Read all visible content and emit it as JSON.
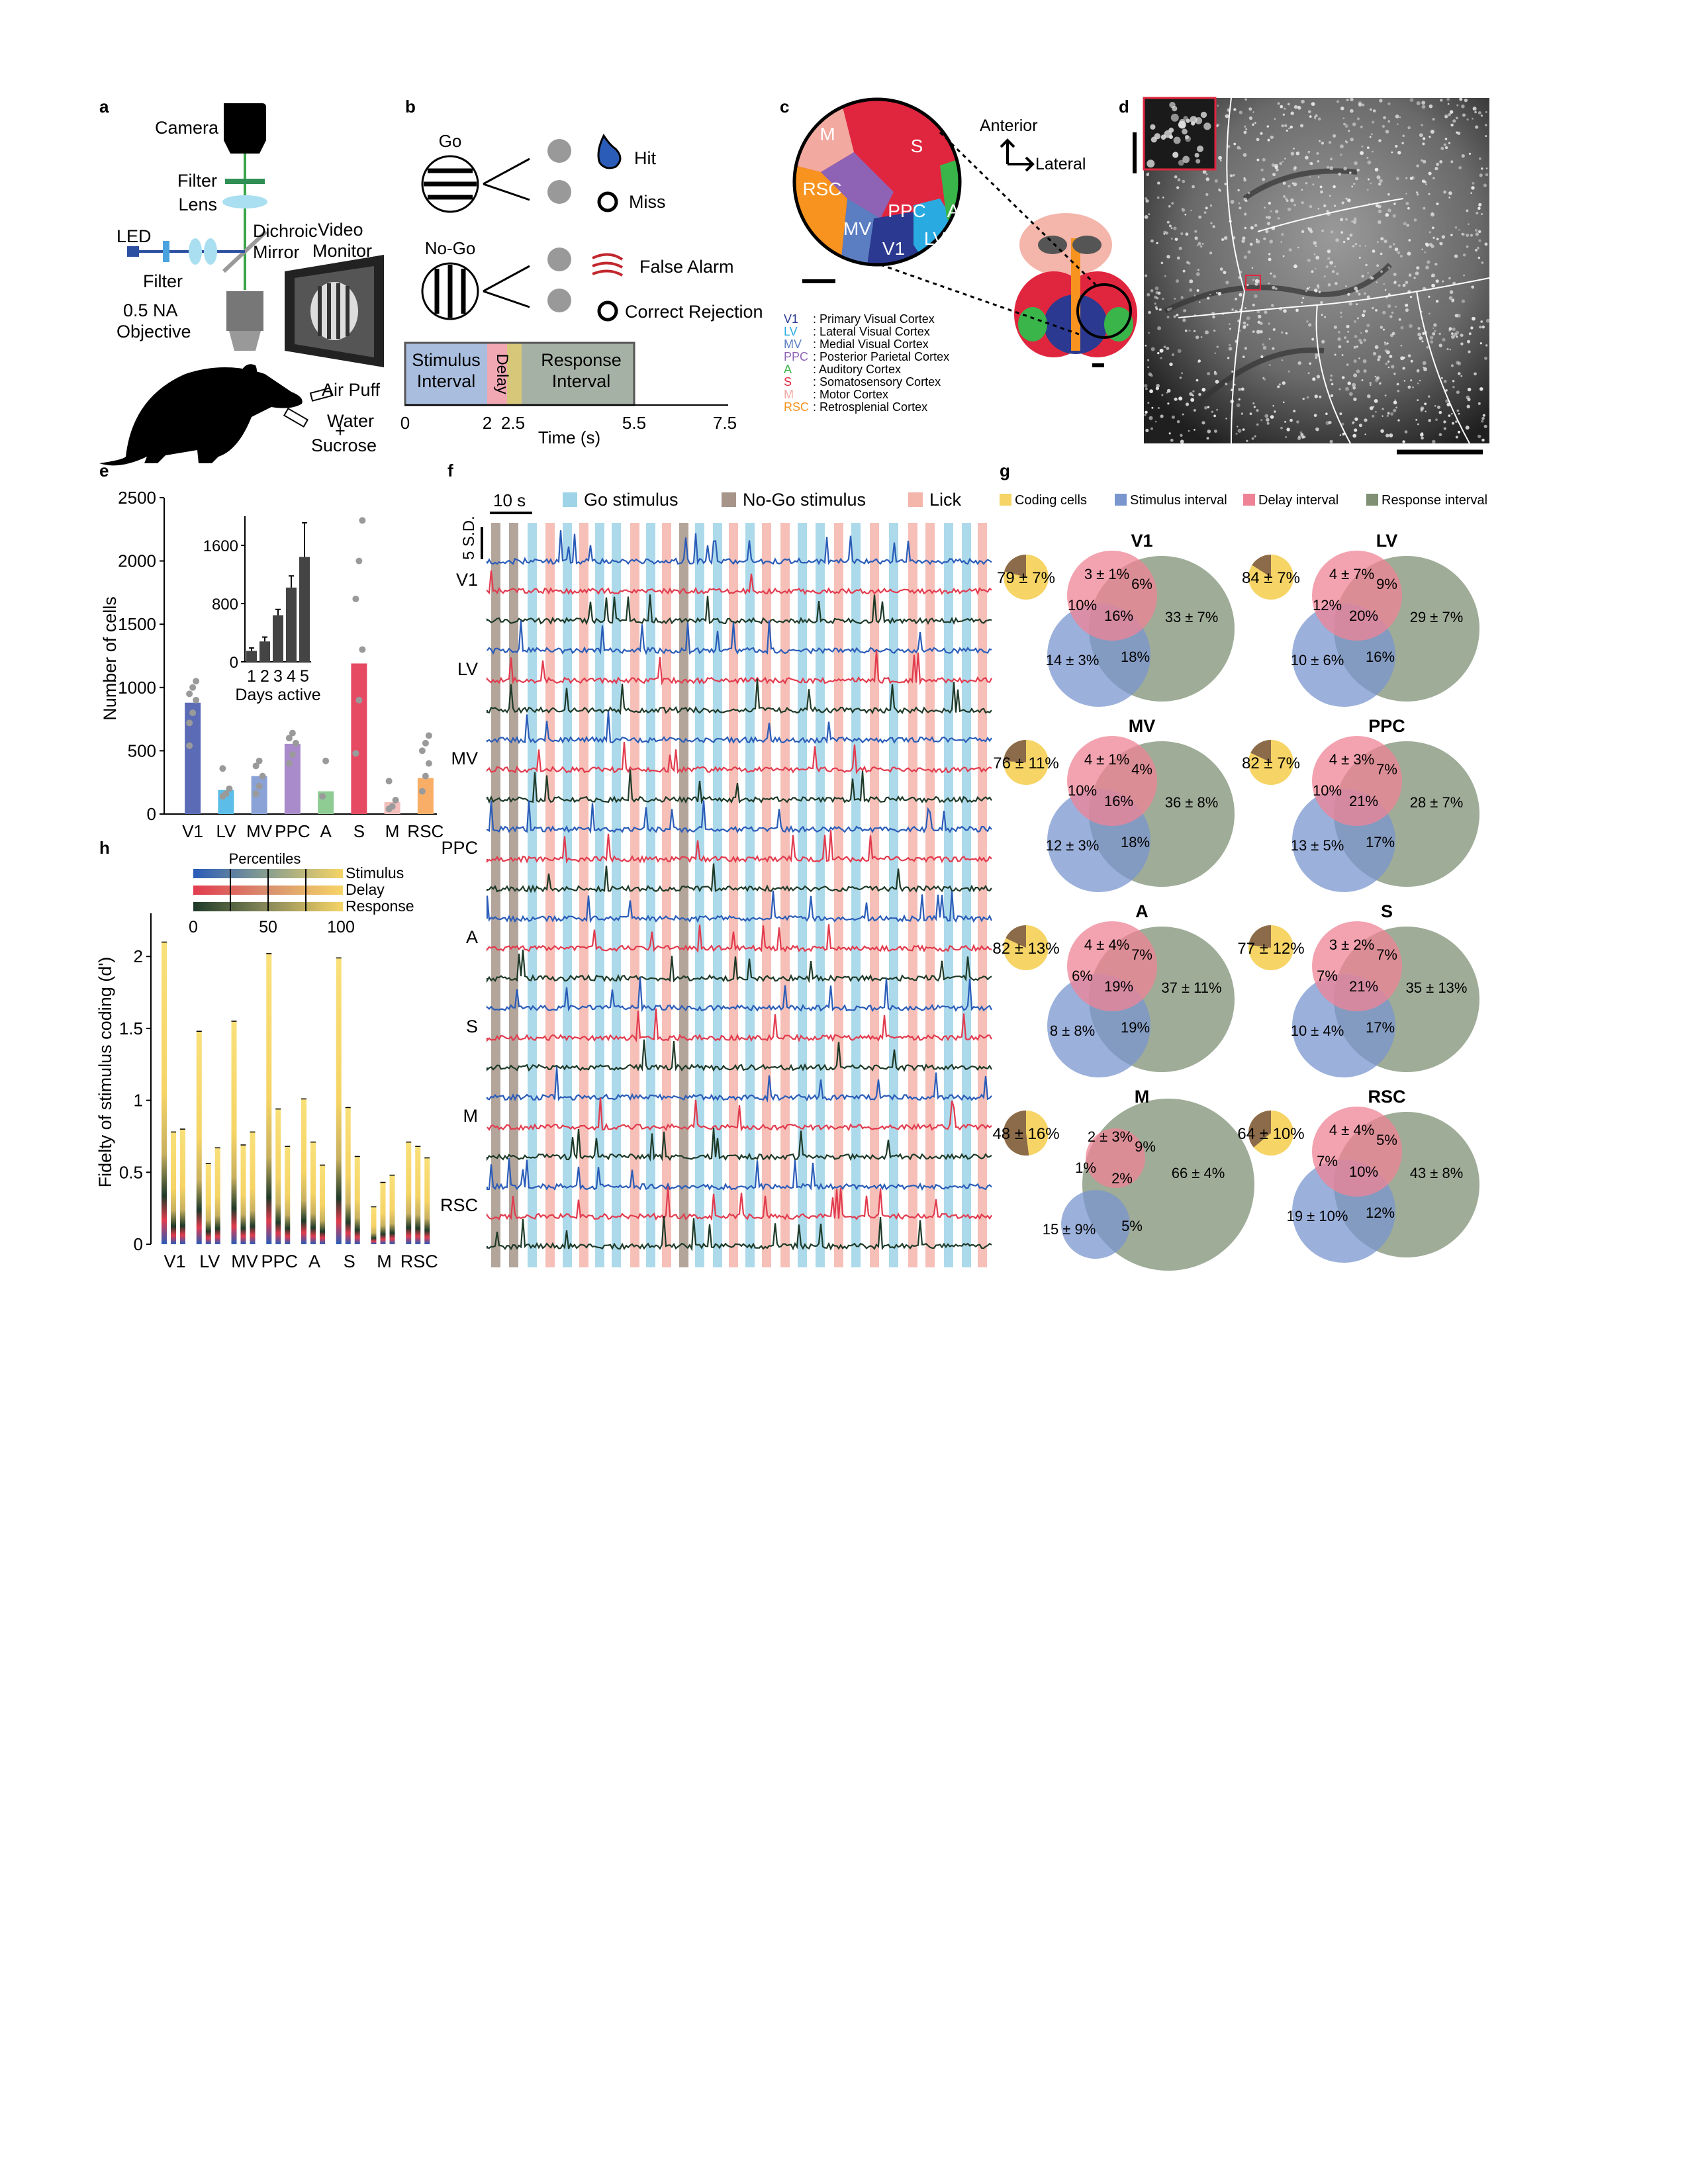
{
  "panels": {
    "a": {
      "letter": "a",
      "labels": [
        "Camera",
        "Filter",
        "Lens",
        "Dichroic",
        "Mirror",
        "LED",
        "Filter",
        "0.5 NA",
        "Objective",
        "Video",
        "Monitor",
        "Air Puff",
        "Water",
        "+",
        "Sucrose"
      ]
    },
    "b": {
      "letter": "b",
      "go_label": "Go",
      "nogo_label": "No-Go",
      "outcomes": [
        "Hit",
        "Miss",
        "False Alarm",
        "Correct Rejection"
      ],
      "intervals": {
        "stimulus_1": "Stimulus",
        "stimulus_2": "Interval",
        "delay": "Delay",
        "response_1": "Response",
        "response_2": "Interval"
      },
      "time_ticks": [
        "0",
        "2",
        "2.5",
        "5.5",
        "7.5"
      ],
      "time_label": "Time (s)",
      "colors": {
        "stimulus": "#a9bedf",
        "delay": "#f2a8b3",
        "response": "#a6b1a5"
      }
    },
    "c": {
      "letter": "c",
      "orientation": {
        "anterior": "Anterior",
        "lateral": "Lateral"
      },
      "areas_on_map": [
        "M",
        "S",
        "RSC",
        "PPC",
        "MV",
        "V1",
        "LV",
        "A"
      ],
      "legend": [
        {
          "abbr": "V1",
          "name": ": Primary Visual Cortex",
          "color": "#2b3990"
        },
        {
          "abbr": "LV",
          "name": ": Lateral Visual Cortex",
          "color": "#29abe2"
        },
        {
          "abbr": "MV",
          "name": ": Medial Visual Cortex",
          "color": "#5b7ec2"
        },
        {
          "abbr": "PPC",
          "name": ": Posterior Parietal Cortex",
          "color": "#8e63b5"
        },
        {
          "abbr": "A",
          "name": ": Auditory Cortex",
          "color": "#39b54a"
        },
        {
          "abbr": "S",
          "name": ": Somatosensory Cortex",
          "color": "#e0263e"
        },
        {
          "abbr": "M",
          "name": ": Motor Cortex",
          "color": "#f1a9a0"
        },
        {
          "abbr": "RSC",
          "name": ": Retrosplenial Cortex",
          "color": "#f7931e"
        }
      ]
    },
    "d": {
      "letter": "d"
    },
    "e": {
      "letter": "e",
      "chart_data": {
        "type": "bar",
        "ylabel": "Number of cells",
        "ylim": [
          0,
          2500
        ],
        "yticks": [
          "0",
          "500",
          "1000",
          "1500",
          "2000",
          "2500"
        ],
        "categories": [
          "V1",
          "LV",
          "MV",
          "PPC",
          "A",
          "S",
          "M",
          "RSC"
        ],
        "values": [
          880,
          190,
          300,
          555,
          180,
          1190,
          95,
          285
        ],
        "colors": [
          "#5b6bb5",
          "#5bbde8",
          "#8aa2d6",
          "#a98bcc",
          "#8fcc94",
          "#e64a63",
          "#f3bfbb",
          "#f9ae67"
        ],
        "dots": [
          [
            720,
            800,
            900,
            950,
            1000,
            1050,
            540
          ],
          [
            140,
            160,
            200,
            360
          ],
          [
            160,
            220,
            300,
            380,
            420
          ],
          [
            400,
            470,
            560,
            600,
            640
          ],
          [
            140,
            420
          ],
          [
            480,
            900,
            1300,
            1700,
            2000,
            2320
          ],
          [
            40,
            60,
            110,
            260
          ],
          [
            180,
            300,
            400,
            500,
            560,
            620
          ]
        ],
        "inset": {
          "type": "bar",
          "xlabel": "Days active",
          "categories": [
            "1",
            "2",
            "3",
            "4",
            "5"
          ],
          "values": [
            150,
            280,
            640,
            1020,
            1440
          ],
          "errors": [
            40,
            60,
            80,
            160,
            470
          ],
          "ylim": [
            0,
            2000
          ],
          "yticks": [
            "0",
            "800",
            "1600"
          ]
        }
      }
    },
    "f": {
      "letter": "f",
      "legend": [
        {
          "label": "Go stimulus",
          "color": "#9fd3e8"
        },
        {
          "label": "No-Go stimulus",
          "color": "#a7958a"
        },
        {
          "label": "Lick",
          "color": "#f4b5ab"
        }
      ],
      "scale_time": "10 s",
      "scale_amp": "5 S.D.",
      "rows": [
        "V1",
        "LV",
        "MV",
        "PPC",
        "A",
        "S",
        "M",
        "RSC"
      ],
      "trace_colors": [
        "#2a5cb8",
        "#e23b4e",
        "#1e3a28"
      ]
    },
    "g": {
      "letter": "g",
      "legend": [
        {
          "label": "Coding cells",
          "color": "#f6d465"
        },
        {
          "label": "Stimulus interval",
          "color": "#7a96cf"
        },
        {
          "label": "Delay interval",
          "color": "#ef8395"
        },
        {
          "label": "Response interval",
          "color": "#7f9075"
        }
      ],
      "areas": [
        {
          "name": "V1",
          "pie": "79 ± 7%",
          "pie_frac": 0.79,
          "delay": "3 ± 1%",
          "sd": "10%",
          "dr": "6%",
          "center": "16%",
          "stim": "14 ± 3%",
          "sr": "18%",
          "resp": "33 ± 7%"
        },
        {
          "name": "LV",
          "pie": "84 ± 7%",
          "pie_frac": 0.84,
          "delay": "4 ± 7%",
          "sd": "12%",
          "dr": "9%",
          "center": "20%",
          "stim": "10 ± 6%",
          "sr": "16%",
          "resp": "29 ± 7%"
        },
        {
          "name": "MV",
          "pie": "76 ± 11%",
          "pie_frac": 0.76,
          "delay": "4 ± 1%",
          "sd": "10%",
          "dr": "4%",
          "center": "16%",
          "stim": "12 ± 3%",
          "sr": "18%",
          "resp": "36 ± 8%"
        },
        {
          "name": "PPC",
          "pie": "82 ± 7%",
          "pie_frac": 0.82,
          "delay": "4 ± 3%",
          "sd": "10%",
          "dr": "7%",
          "center": "21%",
          "stim": "13 ± 5%",
          "sr": "17%",
          "resp": "28 ± 7%"
        },
        {
          "name": "A",
          "pie": "82 ± 13%",
          "pie_frac": 0.82,
          "delay": "4 ± 4%",
          "sd": "6%",
          "dr": "7%",
          "center": "19%",
          "stim": "8 ± 8%",
          "sr": "19%",
          "resp": "37 ± 11%"
        },
        {
          "name": "S",
          "pie": "77 ± 12%",
          "pie_frac": 0.77,
          "delay": "3 ± 2%",
          "sd": "7%",
          "dr": "7%",
          "center": "21%",
          "stim": "10 ± 4%",
          "sr": "17%",
          "resp": "35 ± 13%"
        },
        {
          "name": "M",
          "pie": "48 ± 16%",
          "pie_frac": 0.48,
          "delay": "2 ± 3%",
          "sd": "1%",
          "dr": "9%",
          "center": "2%",
          "stim": "15 ± 9%",
          "sr": "5%",
          "resp": "66 ± 4%"
        },
        {
          "name": "RSC",
          "pie": "64 ± 10%",
          "pie_frac": 0.64,
          "delay": "4 ± 4%",
          "sd": "7%",
          "dr": "5%",
          "center": "10%",
          "stim": "19 ± 10%",
          "sr": "12%",
          "resp": "43 ± 8%"
        }
      ]
    },
    "h": {
      "letter": "h",
      "legend_title": "Percentiles",
      "legend_rows": [
        "Stimulus",
        "Delay",
        "Response"
      ],
      "legend_ticks": [
        "0",
        "50",
        "100"
      ],
      "chart_data": {
        "type": "bar",
        "ylabel": "Fidelty of stimulus coding (d')",
        "ylim": [
          0,
          2.3
        ],
        "yticks": [
          "0",
          "0.5",
          "1",
          "1.5",
          "2"
        ],
        "categories": [
          "V1",
          "LV",
          "MV",
          "PPC",
          "A",
          "S",
          "M",
          "RSC"
        ],
        "series": [
          {
            "values": [
              2.1,
              1.48,
              1.55,
              2.02,
              1.01,
              1.99,
              0.26,
              0.71
            ]
          },
          {
            "values": [
              0.78,
              0.56,
              0.69,
              0.94,
              0.71,
              0.95,
              0.43,
              0.68
            ]
          },
          {
            "values": [
              0.8,
              0.67,
              0.78,
              0.68,
              0.55,
              0.61,
              0.48,
              0.6
            ]
          }
        ]
      }
    }
  }
}
